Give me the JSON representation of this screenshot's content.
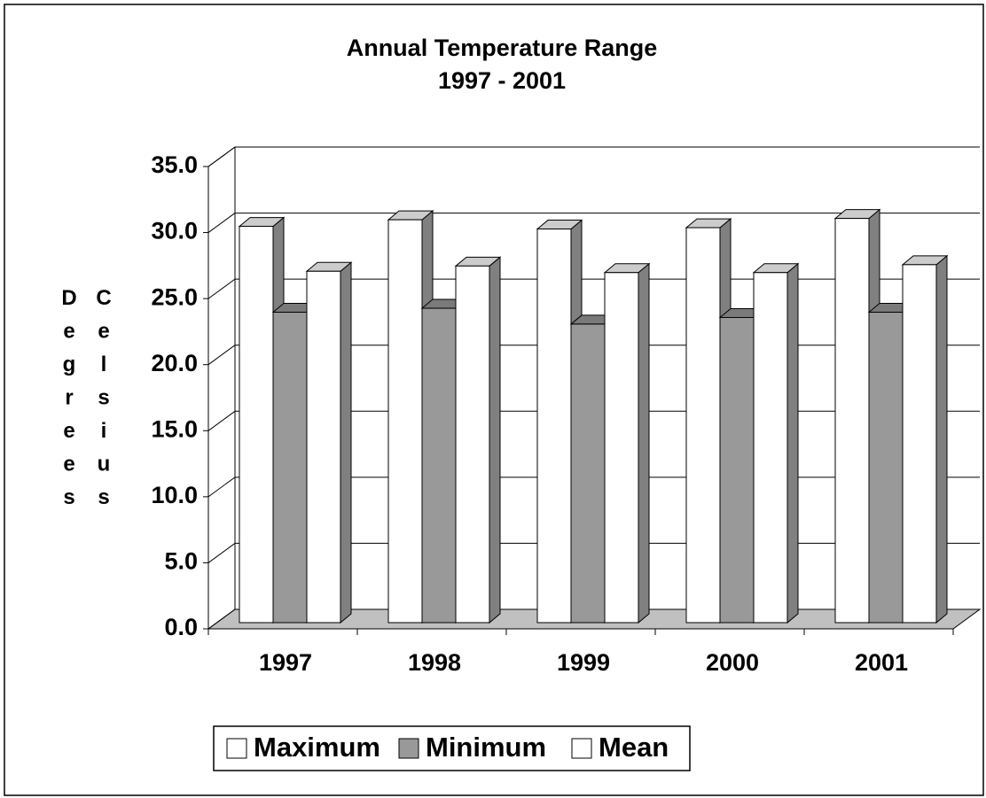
{
  "chart_data": {
    "type": "bar3d",
    "title": "Annual Temperature Range",
    "subtitle": "1997 - 2001",
    "y_label": "Degrees Celsius",
    "categories": [
      "1997",
      "1998",
      "1999",
      "2000",
      "2001"
    ],
    "series": [
      {
        "name": "Maximum",
        "color": "#ffffff",
        "values": [
          30.0,
          30.5,
          29.8,
          29.9,
          30.6
        ]
      },
      {
        "name": "Minimum",
        "color": "#999999",
        "values": [
          23.5,
          23.8,
          22.6,
          23.1,
          23.5
        ]
      },
      {
        "name": "Mean",
        "color": "#ffffff",
        "values": [
          26.6,
          27.0,
          26.5,
          26.5,
          27.1
        ]
      }
    ],
    "ylim": [
      0,
      35
    ],
    "yticks": [
      {
        "value": 0,
        "label": "0.0"
      },
      {
        "value": 5,
        "label": "5.0"
      },
      {
        "value": 10,
        "label": "10.0"
      },
      {
        "value": 15,
        "label": "15.0"
      },
      {
        "value": 20,
        "label": "20.0"
      },
      {
        "value": 25,
        "label": "25.0"
      },
      {
        "value": 30,
        "label": "30.0"
      },
      {
        "value": 35,
        "label": "35.0"
      }
    ],
    "grid": true,
    "legend": "bottom"
  }
}
